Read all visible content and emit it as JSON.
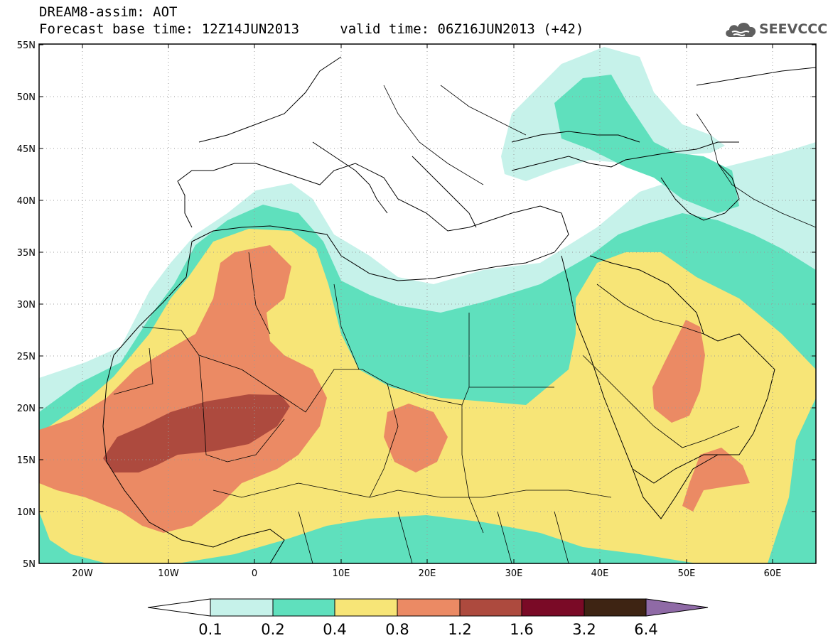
{
  "header": {
    "title": "DREAM8-assim: AOT",
    "base_time_label": "Forecast base time: 12Z14JUN2013",
    "valid_time_label": "valid time: 06Z16JUN2013 (+42)"
  },
  "logo": {
    "text": "SEEVCCC",
    "icon": "cloud-icon"
  },
  "map": {
    "lat_labels": [
      "55N",
      "50N",
      "45N",
      "40N",
      "35N",
      "30N",
      "25N",
      "20N",
      "15N",
      "10N",
      "5N"
    ],
    "lon_labels": [
      "20W",
      "10W",
      "0",
      "10E",
      "20E",
      "30E",
      "40E",
      "50E",
      "60E"
    ],
    "lon_range": [
      -25,
      65
    ],
    "lat_range": [
      5,
      55
    ],
    "grid": "dotted"
  },
  "legend": {
    "bins": [
      {
        "color": "#c6f2ea"
      },
      {
        "color": "#5fe0bd"
      },
      {
        "color": "#f7e577"
      },
      {
        "color": "#eb8a64"
      },
      {
        "color": "#ad4a3e"
      },
      {
        "color": "#7a0a26"
      },
      {
        "color": "#3e2413"
      }
    ],
    "under_color": "#ffffff",
    "over_color": "#8f6aa6",
    "labels": [
      "0.1",
      "0.2",
      "0.4",
      "0.8",
      "1.2",
      "1.6",
      "3.2",
      "6.4"
    ]
  }
}
